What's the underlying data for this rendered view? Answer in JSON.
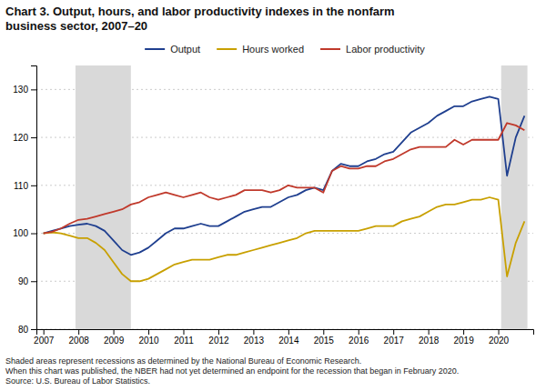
{
  "chart_data": {
    "type": "line",
    "title": "Chart 3. Output, hours, and labor productivity indexes in the nonfarm",
    "subtitle": "business sector, 2007–20",
    "footnotes": [
      "Shaded areas represent recessions as determined by the National Bureau of Economic Research.",
      "When this chart was published, the NBER had not yet determined an endpoint for the recession that began in February 2020.",
      "Source: U.S. Bureau of Labor Statistics."
    ],
    "shaded_ranges": [
      {
        "start": 2007.917,
        "end": 2009.5
      },
      {
        "start": 2020.083,
        "end": 2020.833
      }
    ],
    "x": [
      2007.0,
      2007.25,
      2007.5,
      2007.75,
      2008.0,
      2008.25,
      2008.5,
      2008.75,
      2009.0,
      2009.25,
      2009.5,
      2009.75,
      2010.0,
      2010.25,
      2010.5,
      2010.75,
      2011.0,
      2011.25,
      2011.5,
      2011.75,
      2012.0,
      2012.25,
      2012.5,
      2012.75,
      2013.0,
      2013.25,
      2013.5,
      2013.75,
      2014.0,
      2014.25,
      2014.5,
      2014.75,
      2015.0,
      2015.25,
      2015.5,
      2015.75,
      2016.0,
      2016.25,
      2016.5,
      2016.75,
      2017.0,
      2017.25,
      2017.5,
      2017.75,
      2018.0,
      2018.25,
      2018.5,
      2018.75,
      2019.0,
      2019.25,
      2019.5,
      2019.75,
      2020.0,
      2020.25,
      2020.5,
      2020.75
    ],
    "series": [
      {
        "name": "Output",
        "color": "#1f3f8f",
        "values": [
          100.0,
          100.5,
          101.0,
          101.5,
          101.8,
          102.0,
          101.5,
          100.5,
          98.5,
          96.5,
          95.5,
          96.0,
          97.0,
          98.5,
          100.0,
          101.0,
          101.0,
          101.5,
          102.0,
          101.5,
          101.5,
          102.5,
          103.5,
          104.5,
          105.0,
          105.5,
          105.5,
          106.5,
          107.5,
          108.0,
          109.0,
          109.5,
          109.0,
          113.0,
          114.5,
          114.0,
          114.0,
          115.0,
          115.5,
          116.5,
          117.0,
          119.0,
          121.0,
          122.0,
          123.0,
          124.5,
          125.5,
          126.5,
          126.5,
          127.5,
          128.0,
          128.5,
          128.0,
          112.0,
          120.0,
          124.5
        ]
      },
      {
        "name": "Hours worked",
        "color": "#c8a000",
        "values": [
          100.0,
          100.2,
          100.0,
          99.5,
          99.0,
          99.0,
          98.0,
          96.5,
          94.0,
          91.5,
          90.0,
          90.0,
          90.5,
          91.5,
          92.5,
          93.5,
          94.0,
          94.5,
          94.5,
          94.5,
          95.0,
          95.5,
          95.5,
          96.0,
          96.5,
          97.0,
          97.5,
          98.0,
          98.5,
          99.0,
          100.0,
          100.5,
          100.5,
          100.5,
          100.5,
          100.5,
          100.5,
          101.0,
          101.5,
          101.5,
          101.5,
          102.5,
          103.0,
          103.5,
          104.5,
          105.5,
          106.0,
          106.0,
          106.5,
          107.0,
          107.0,
          107.5,
          107.0,
          91.0,
          98.0,
          102.5
        ]
      },
      {
        "name": "Labor productivity",
        "color": "#c0392b",
        "values": [
          100.0,
          100.3,
          101.0,
          102.0,
          102.8,
          103.0,
          103.5,
          104.0,
          104.5,
          105.0,
          106.0,
          106.5,
          107.5,
          108.0,
          108.5,
          108.0,
          107.5,
          108.0,
          108.5,
          107.5,
          107.0,
          107.5,
          108.0,
          109.0,
          109.0,
          109.0,
          108.5,
          109.0,
          110.0,
          109.5,
          109.5,
          109.5,
          108.5,
          113.0,
          114.0,
          113.5,
          113.5,
          114.0,
          114.0,
          115.0,
          115.5,
          116.5,
          117.5,
          118.0,
          118.0,
          118.0,
          118.0,
          119.5,
          118.5,
          119.5,
          119.5,
          119.5,
          119.5,
          123.0,
          122.5,
          121.5
        ]
      }
    ],
    "xlim": [
      2006.8,
      2021.0
    ],
    "xticks": [
      2007,
      2008,
      2009,
      2010,
      2011,
      2012,
      2013,
      2014,
      2015,
      2016,
      2017,
      2018,
      2019,
      2020
    ],
    "ylim": [
      80,
      135
    ],
    "yticks": [
      80,
      90,
      100,
      110,
      120,
      130
    ],
    "grid": true,
    "legend": "top"
  }
}
